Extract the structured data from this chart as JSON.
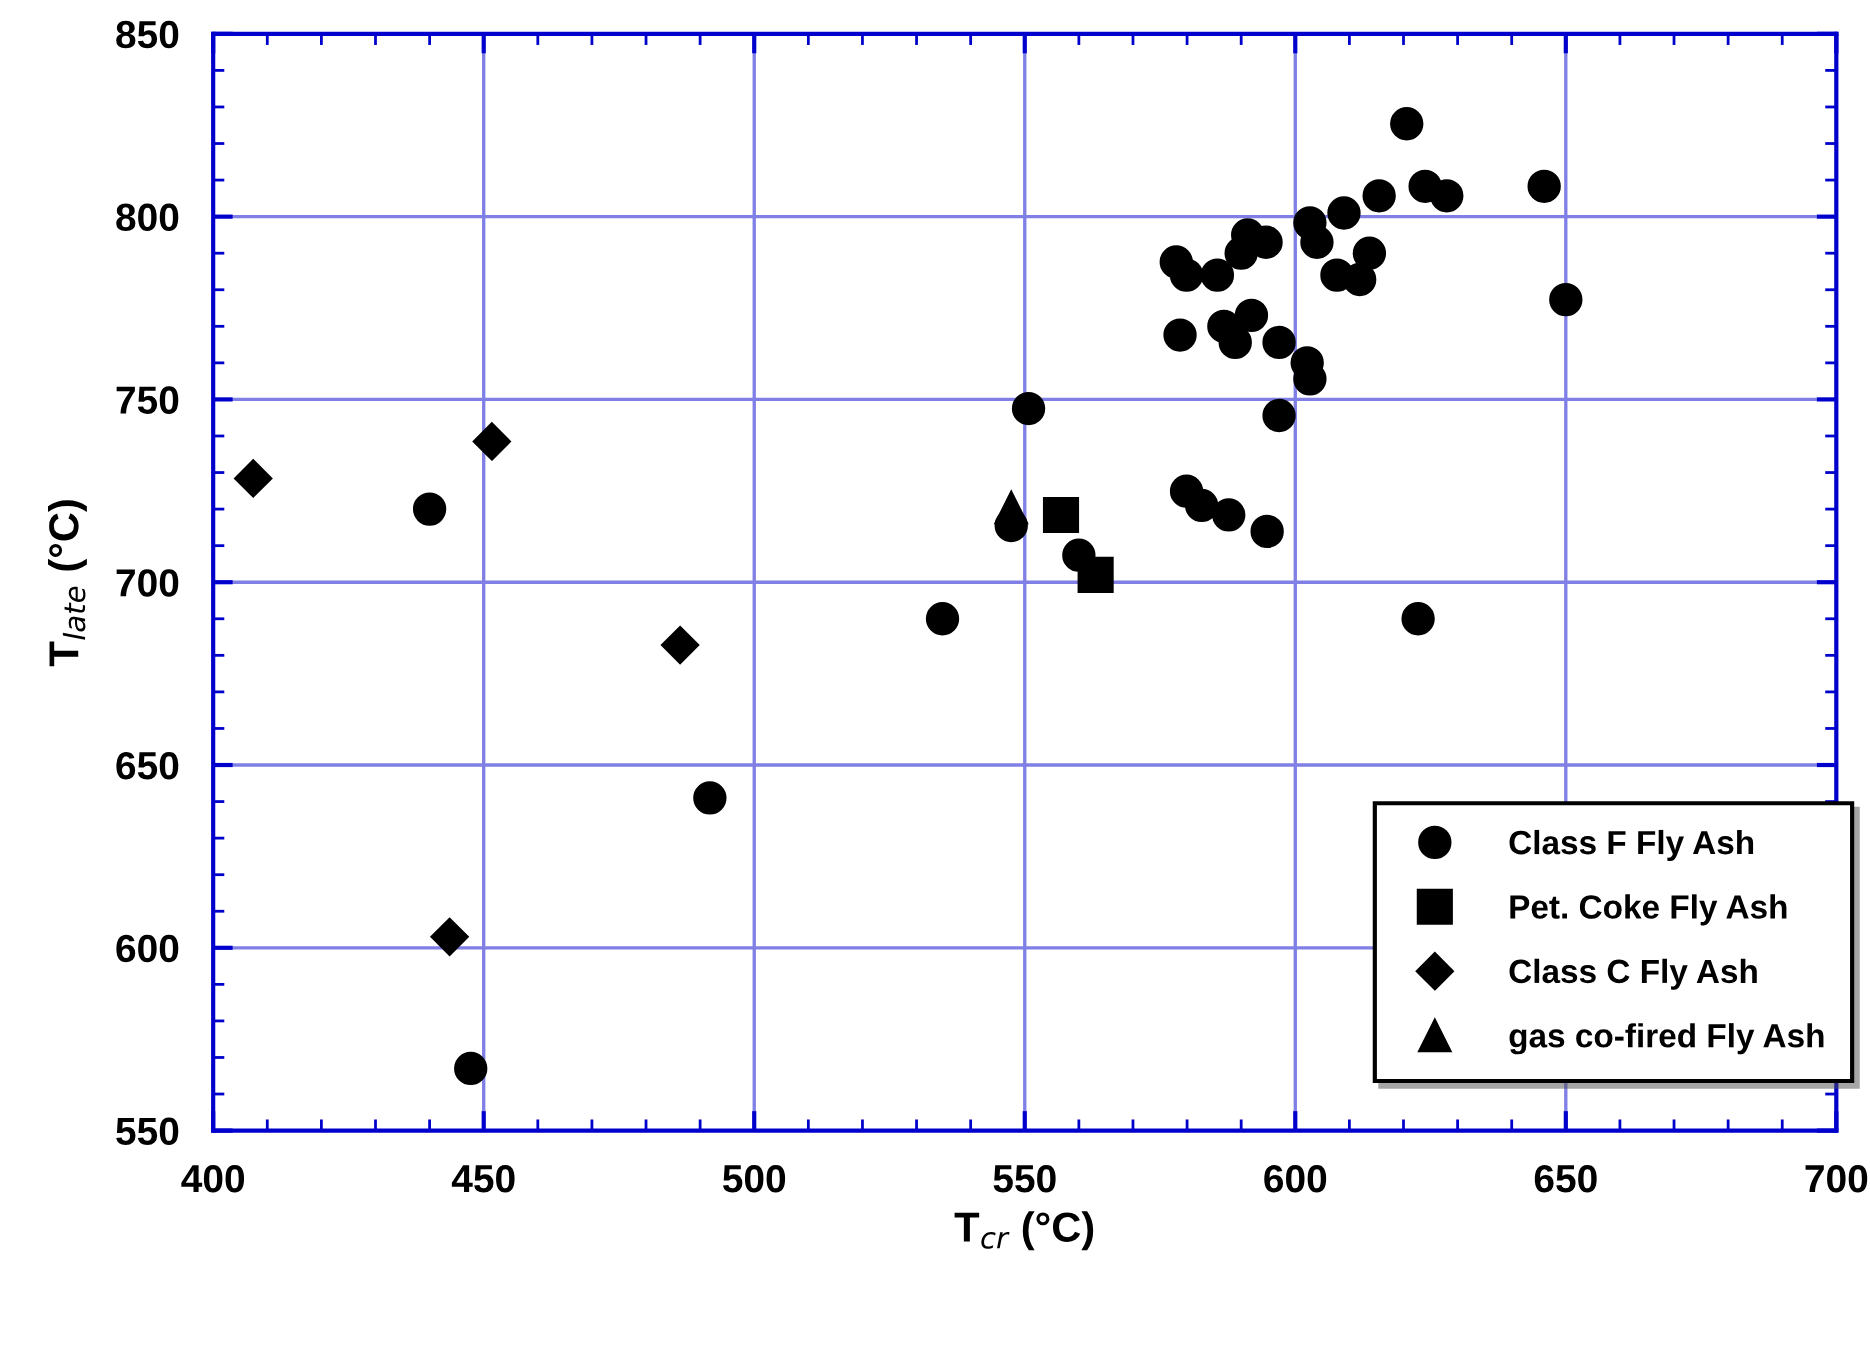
{
  "chart_data": {
    "type": "scatter",
    "xlabel": "T$_{cr}$ (°C)",
    "ylabel": "T$_{late}$ (°C)",
    "xlim": [
      400,
      700
    ],
    "xticks": [
      400,
      450,
      500,
      550,
      600,
      650,
      700
    ],
    "ylim": [
      550,
      850
    ],
    "yticks": [
      550,
      600,
      650,
      700,
      750,
      800,
      850
    ],
    "grid": true,
    "legend": "bottom right",
    "series": [
      {
        "name": "Class F Fly Ash",
        "color": "#000000",
        "marker": "circle",
        "x": [
          440,
          447.6,
          491.8,
          534.8,
          550.7,
          547.5,
          560,
          578.7,
          578,
          579.9,
          585.6,
          590,
          591.2,
          594.6,
          586.8,
          588.9,
          591.9,
          597,
          602.2,
          602.7,
          597,
          602.7,
          604,
          609,
          607.7,
          611.9,
          613.7,
          615.5,
          620.6,
          624,
          628,
          646,
          650,
          579.9,
          582.7,
          587.7,
          594.8,
          622.7
        ],
        "values": [
          720,
          567,
          641,
          690,
          747.5,
          715.5,
          707.4,
          767.6,
          787.6,
          784,
          784,
          790,
          795,
          793,
          770,
          765.6,
          773,
          765.6,
          760,
          755.6,
          745.6,
          798.3,
          793,
          801,
          784,
          782.8,
          790,
          805.7,
          825.4,
          808.3,
          805.7,
          808.3,
          777.3,
          724.9,
          721,
          718.4,
          713.9,
          690
        ]
      },
      {
        "name": "Pet. Coke Fly Ash",
        "color": "#000000",
        "marker": "square",
        "x": [
          556.7,
          563.1
        ],
        "values": [
          718.4,
          702
        ]
      },
      {
        "name": "Class C Fly Ash",
        "color": "#000000",
        "marker": "diamond",
        "x": [
          407.4,
          451.5,
          486.3,
          443.7
        ],
        "values": [
          728.4,
          738.5,
          682.8,
          603
        ]
      },
      {
        "name": "gas co-fired Fly Ash",
        "color": "#000000",
        "marker": "triangle",
        "x": [
          547.5
        ],
        "values": [
          720.4
        ]
      }
    ]
  }
}
